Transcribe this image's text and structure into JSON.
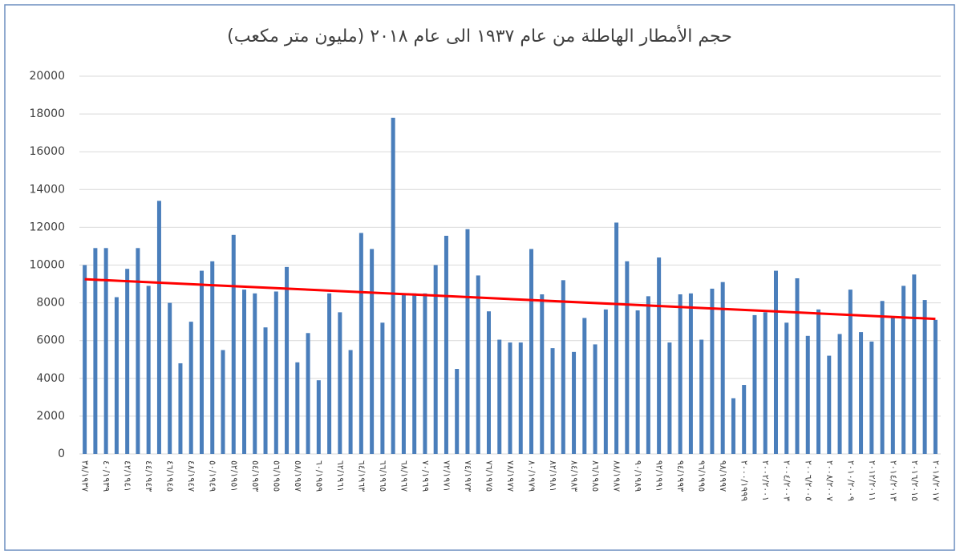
{
  "chart_data": {
    "type": "bar",
    "title": "حجم الأمطار الهاطلة من عام ١٩٣٧ الى عام ٢٠١٨ (مليون متر مكعب)",
    "categories": [
      "٣٨/١٩٣٧",
      null,
      "٤٠/١٩٣٩",
      null,
      "٤٢/١٩٤١",
      null,
      "٤٤/١٩٤٣",
      null,
      "٤٦/١٩٤٥",
      null,
      "٤٨/١٩٤٧",
      null,
      "٥٠/١٩٤٩",
      null,
      "٥٢/١٩٥١",
      null,
      "٥٤/١٩٥٣",
      null,
      "٥٦/١٩٥٥",
      null,
      "٥٨/١٩٥٧",
      null,
      "٦٠/١٩٥٩",
      null,
      "٦٢/١٩٦١",
      null,
      "٦٤/١٩٦٣",
      null,
      "٦٦/١٩٦٥",
      null,
      "٦٨/١٩٦٧",
      null,
      "٧٠/١٩٦٩",
      null,
      "٧٢/١٩٧١",
      null,
      "٧٤/١٩٧٣",
      null,
      "٧٦/١٩٧٥",
      null,
      "٧٨/١٩٧٧",
      null,
      "٨٠/١٩٧٩",
      null,
      "٨٢/١٩٨١",
      null,
      "٨٤/١٩٨٣",
      null,
      "٨٦/١٩٨٥",
      null,
      "٨٨/١٩٨٧",
      null,
      "٩٠/١٩٨٩",
      null,
      "٩٢/١٩٩١",
      null,
      "٩٤/١٩٩٣",
      null,
      "٩٦/١٩٩٥",
      null,
      "٩٨/١٩٩٧",
      null,
      "٢٠٠٠/١٩٩٩",
      null,
      "٢٠٠٢/٢٠٠١",
      null,
      "٢٠٠٤/٢٠٠٣",
      null,
      "٢٠٠٦/٢٠٠٥",
      null,
      "٢٠٠٨/٢٠٠٧",
      null,
      "٢٠١٠/٢٠٠٩",
      null,
      "٢٠١٢/٢٠١١",
      null,
      "٢٠١٤/٢٠١٣",
      null,
      "٢٠١٦/٢٠١٥",
      null,
      "٢٠١٨/٢٠١٧"
    ],
    "values": [
      10000,
      10900,
      10900,
      8300,
      9800,
      10900,
      8900,
      13400,
      8000,
      4800,
      7000,
      9700,
      10200,
      5500,
      11600,
      8700,
      8500,
      6700,
      8600,
      9900,
      4850,
      6400,
      3900,
      8500,
      7500,
      5500,
      11700,
      10850,
      6950,
      17800,
      8500,
      8500,
      8500,
      10000,
      11550,
      4500,
      11900,
      9450,
      7550,
      6050,
      5900,
      5900,
      10850,
      8450,
      5600,
      9200,
      5400,
      7200,
      5800,
      7650,
      12250,
      10200,
      7600,
      8350,
      10400,
      5900,
      8450,
      8500,
      6050,
      8750,
      9100,
      2950,
      3650,
      7350,
      7500,
      9700,
      6950,
      9300,
      6250,
      7650,
      5200,
      6350,
      8700,
      6450,
      5950,
      8100,
      7250,
      8900,
      9500,
      8150,
      7100
    ],
    "color": "#4a7ebb",
    "trendline": {
      "start": 9250,
      "end": 7150,
      "color": "#ff0000"
    },
    "ylim": [
      0,
      20000
    ],
    "yticks": [
      0,
      2000,
      4000,
      6000,
      8000,
      10000,
      12000,
      14000,
      16000,
      18000,
      20000
    ],
    "grid": true
  }
}
